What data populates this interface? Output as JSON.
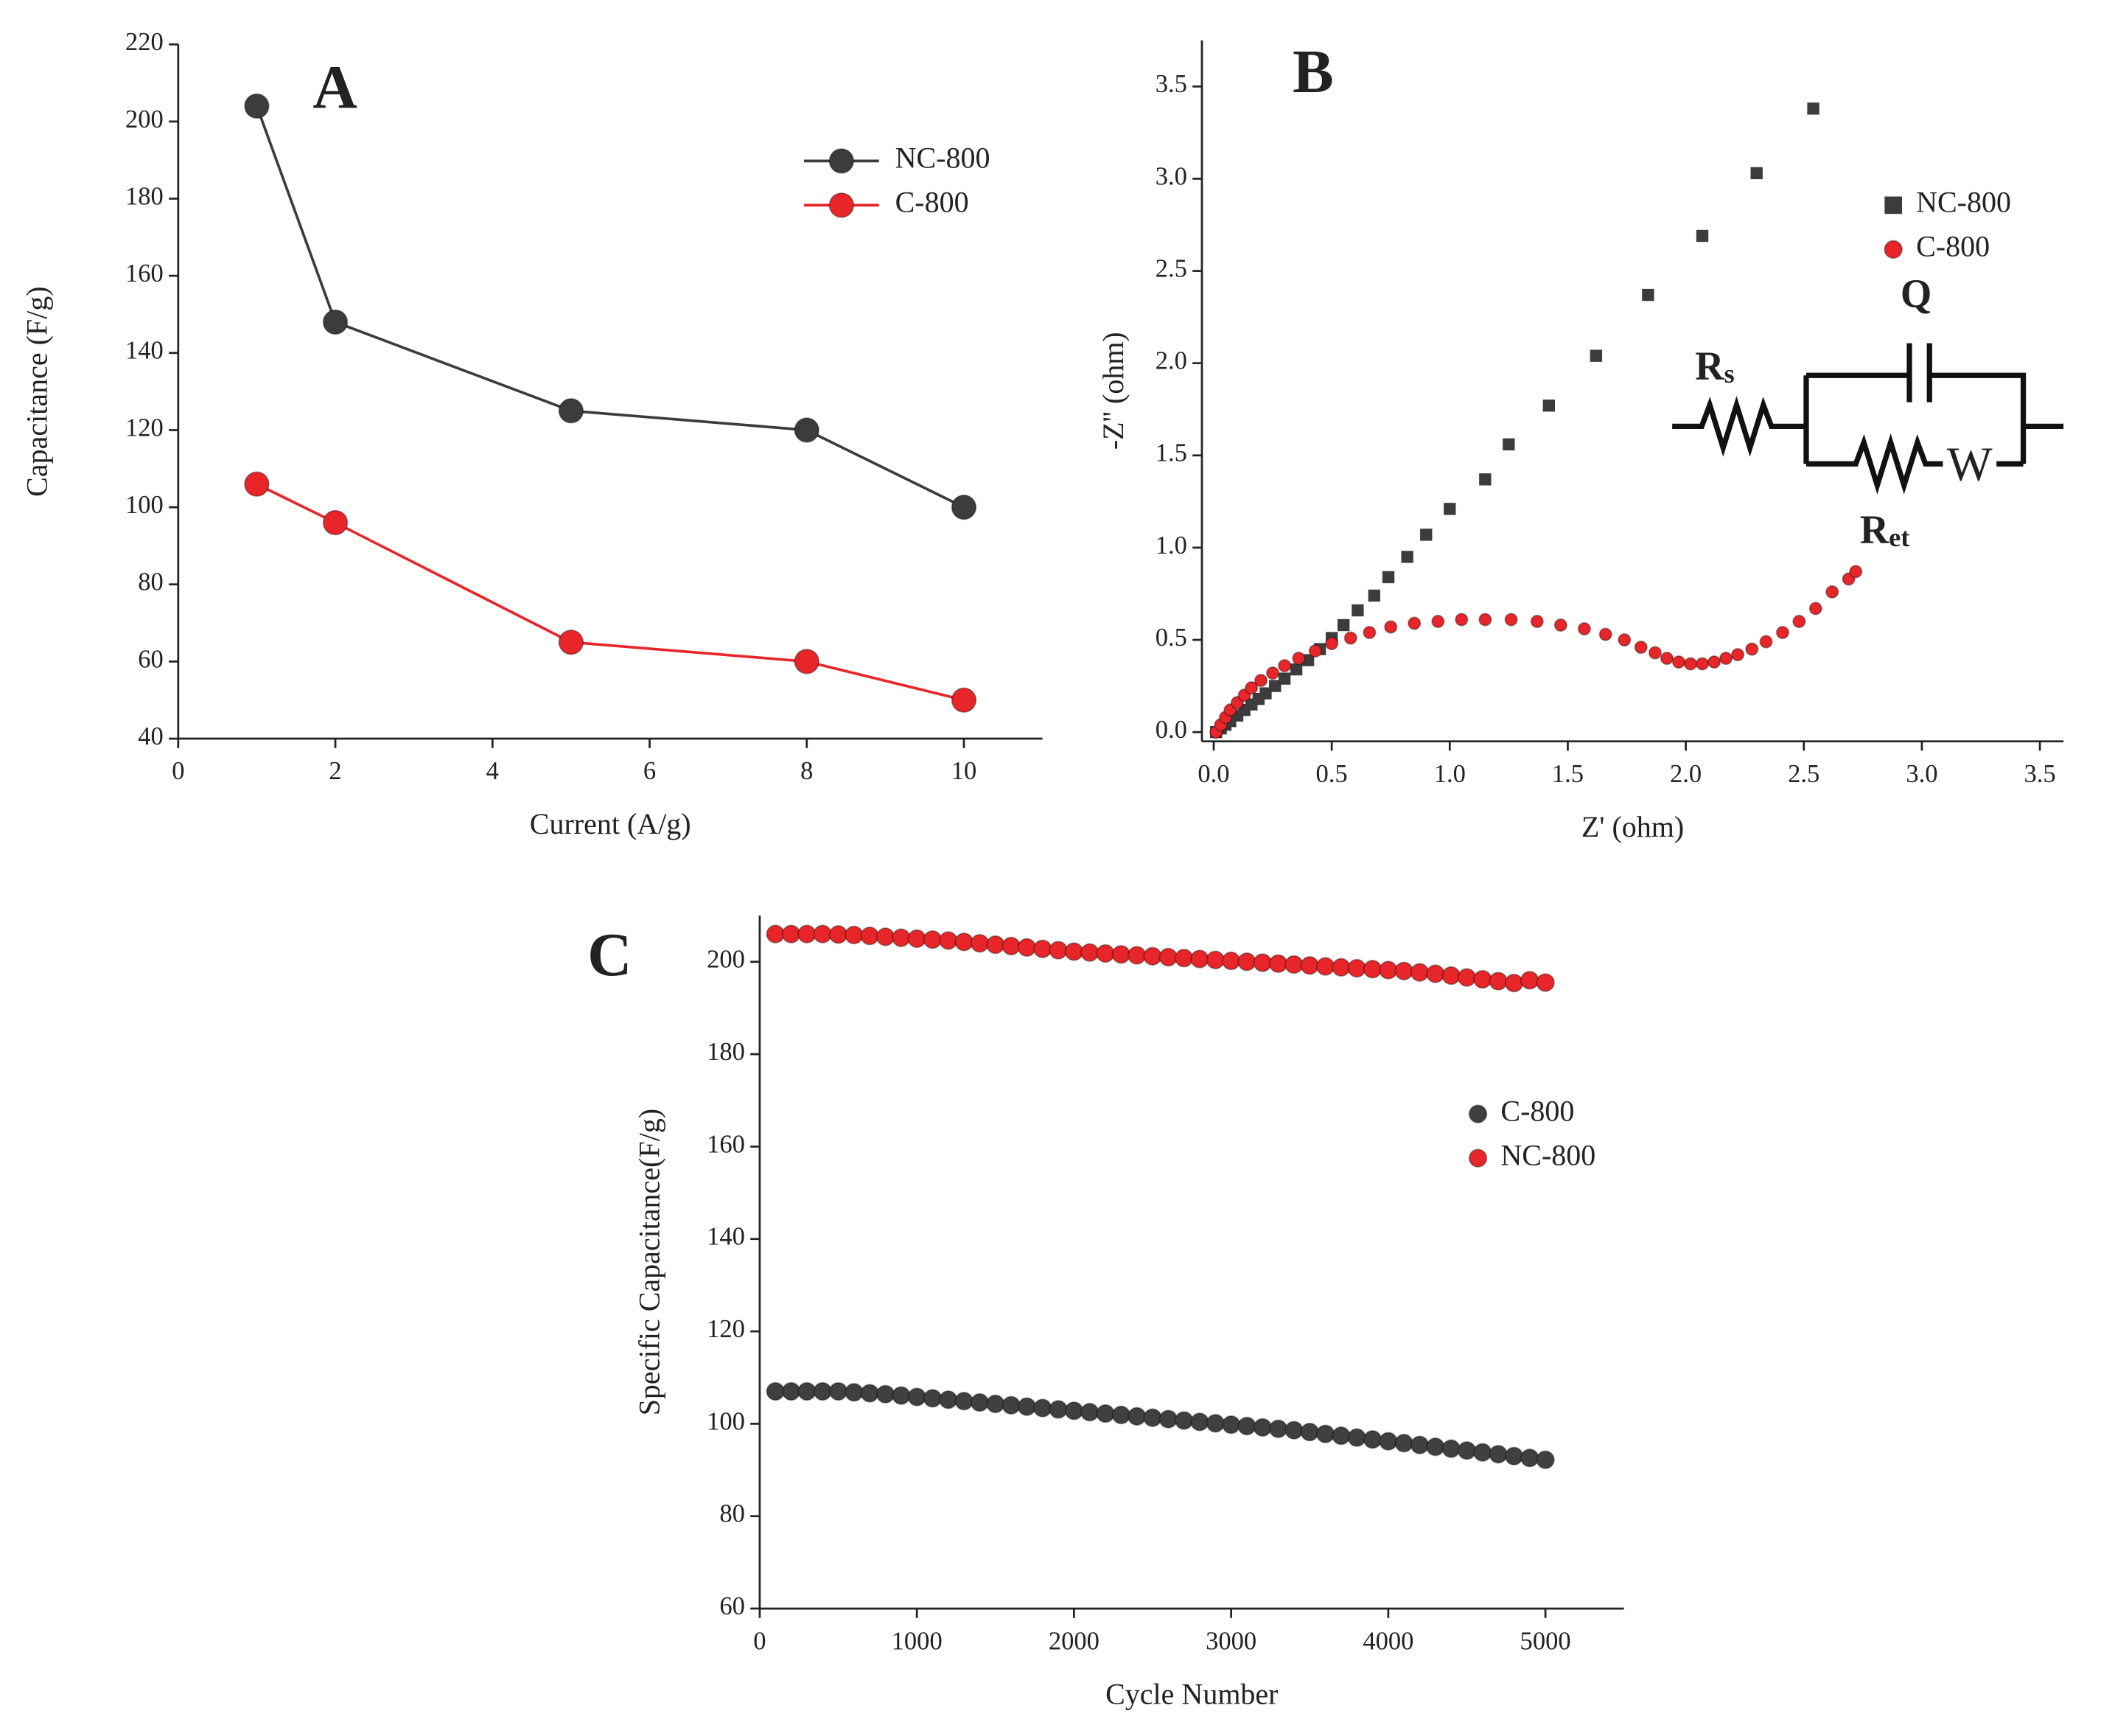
{
  "chart_data": [
    {
      "type": "line",
      "panel_label": "A",
      "xlabel": "Current (A/g)",
      "ylabel": "Capacitance (F/g)",
      "x": [
        1,
        2,
        5,
        8,
        10
      ],
      "series": [
        {
          "name": "NC-800",
          "color": "#3c3c3c",
          "values": [
            204,
            148,
            125,
            120,
            100
          ]
        },
        {
          "name": "C-800",
          "color": "#e8262a",
          "values": [
            106,
            96,
            65,
            60,
            50
          ]
        }
      ],
      "xlim": [
        0,
        11
      ],
      "xticks": [
        0,
        2,
        4,
        6,
        8,
        10
      ],
      "ylim": [
        40,
        220
      ],
      "yticks": [
        40,
        60,
        80,
        100,
        120,
        140,
        160,
        180,
        200,
        220
      ],
      "legend": "upper right"
    },
    {
      "type": "scatter",
      "panel_label": "B",
      "xlabel": "Z' (ohm)",
      "ylabel": "-Z'' (ohm)",
      "series": [
        {
          "name": "NC-800",
          "color": "#3c3c3c",
          "marker": "square",
          "x": [
            0.01,
            0.03,
            0.05,
            0.07,
            0.1,
            0.13,
            0.16,
            0.19,
            0.22,
            0.26,
            0.3,
            0.35,
            0.4,
            0.45,
            0.5,
            0.55,
            0.61,
            0.68,
            0.74,
            0.82,
            0.9,
            1.0,
            1.15,
            1.25,
            1.42,
            1.62,
            1.84,
            2.07,
            2.3,
            2.54
          ],
          "values": [
            0.0,
            0.02,
            0.04,
            0.06,
            0.09,
            0.12,
            0.15,
            0.18,
            0.21,
            0.25,
            0.29,
            0.34,
            0.39,
            0.45,
            0.51,
            0.58,
            0.66,
            0.74,
            0.84,
            0.95,
            1.07,
            1.21,
            1.37,
            1.56,
            1.77,
            2.04,
            2.37,
            2.69,
            3.03,
            3.38
          ]
        },
        {
          "name": "C-800",
          "color": "#e8262a",
          "marker": "circle",
          "x": [
            0.01,
            0.03,
            0.05,
            0.07,
            0.1,
            0.13,
            0.16,
            0.2,
            0.25,
            0.3,
            0.36,
            0.43,
            0.5,
            0.58,
            0.66,
            0.75,
            0.85,
            0.95,
            1.05,
            1.15,
            1.26,
            1.37,
            1.47,
            1.57,
            1.66,
            1.74,
            1.81,
            1.87,
            1.92,
            1.97,
            2.02,
            2.07,
            2.12,
            2.17,
            2.22,
            2.28,
            2.34,
            2.41,
            2.48,
            2.55,
            2.62,
            2.69,
            2.72
          ],
          "values": [
            0.0,
            0.04,
            0.08,
            0.12,
            0.16,
            0.2,
            0.24,
            0.28,
            0.32,
            0.36,
            0.4,
            0.44,
            0.48,
            0.51,
            0.54,
            0.57,
            0.59,
            0.6,
            0.61,
            0.61,
            0.61,
            0.6,
            0.58,
            0.56,
            0.53,
            0.5,
            0.46,
            0.43,
            0.4,
            0.38,
            0.37,
            0.37,
            0.38,
            0.4,
            0.42,
            0.45,
            0.49,
            0.54,
            0.6,
            0.67,
            0.76,
            0.83,
            0.87
          ]
        }
      ],
      "xlim": [
        -0.05,
        3.6
      ],
      "xticks": [
        {
          "value": 0,
          "label": "0.0"
        },
        0.5,
        {
          "value": 1,
          "label": "1.0"
        },
        1.5,
        {
          "value": 2,
          "label": "2.0"
        },
        2.5,
        {
          "value": 3,
          "label": "3.0"
        },
        3.5
      ],
      "ylim": [
        -0.05,
        3.75
      ],
      "yticks": [
        {
          "value": 0,
          "label": "0.0"
        },
        0.5,
        {
          "value": 1,
          "label": "1.0"
        },
        1.5,
        {
          "value": 2,
          "label": "2.0"
        },
        2.5,
        {
          "value": 3,
          "label": "3.0"
        },
        3.5
      ],
      "legend": "upper right",
      "circuit": {
        "rs": [
          "R",
          "s"
        ],
        "q": "Q",
        "ret": [
          "R",
          "et"
        ],
        "w": "W"
      }
    },
    {
      "type": "scatter",
      "panel_label": "C",
      "xlabel": "Cycle Number",
      "ylabel": "Specific Capacitance(F/g)",
      "x": [
        100,
        200,
        300,
        400,
        500,
        600,
        700,
        800,
        900,
        1000,
        1100,
        1200,
        1300,
        1400,
        1500,
        1600,
        1700,
        1800,
        1900,
        2000,
        2100,
        2200,
        2300,
        2400,
        2500,
        2600,
        2700,
        2800,
        2900,
        3000,
        3100,
        3200,
        3300,
        3400,
        3500,
        3600,
        3700,
        3800,
        3900,
        4000,
        4100,
        4200,
        4300,
        4400,
        4500,
        4600,
        4700,
        4800,
        4900,
        5000
      ],
      "series": [
        {
          "name": "C-800",
          "color": "#404040",
          "marker": "circle",
          "values": [
            107,
            107,
            107,
            107,
            107,
            106.8,
            106.6,
            106.4,
            106.1,
            105.8,
            105.5,
            105.2,
            104.9,
            104.6,
            104.3,
            104,
            103.7,
            103.4,
            103.1,
            102.8,
            102.5,
            102.2,
            101.9,
            101.6,
            101.3,
            101,
            100.7,
            100.4,
            100.1,
            99.8,
            99.5,
            99.2,
            98.9,
            98.6,
            98.2,
            97.8,
            97.4,
            97,
            96.6,
            96.2,
            95.8,
            95.4,
            95,
            94.6,
            94.2,
            93.8,
            93.4,
            93,
            92.6,
            92.2
          ]
        },
        {
          "name": "NC-800",
          "color": "#e8262a",
          "marker": "circle",
          "values": [
            206,
            206,
            206,
            206,
            205.9,
            205.8,
            205.6,
            205.4,
            205.2,
            205,
            204.8,
            204.6,
            204.3,
            204,
            203.7,
            203.4,
            203.1,
            202.8,
            202.5,
            202.2,
            202,
            201.8,
            201.6,
            201.4,
            201.2,
            201,
            200.8,
            200.6,
            200.4,
            200.2,
            200,
            199.8,
            199.6,
            199.4,
            199.2,
            199,
            198.8,
            198.6,
            198.4,
            198.2,
            198,
            197.7,
            197.4,
            197,
            196.6,
            196.2,
            195.8,
            195.4,
            196,
            195.5
          ]
        }
      ],
      "xlim": [
        0,
        5500
      ],
      "xticks": [
        0,
        1000,
        2000,
        3000,
        4000,
        5000
      ],
      "ylim": [
        60,
        210
      ],
      "yticks": [
        60,
        80,
        100,
        120,
        140,
        160,
        180,
        200
      ],
      "legend": "center right"
    }
  ]
}
